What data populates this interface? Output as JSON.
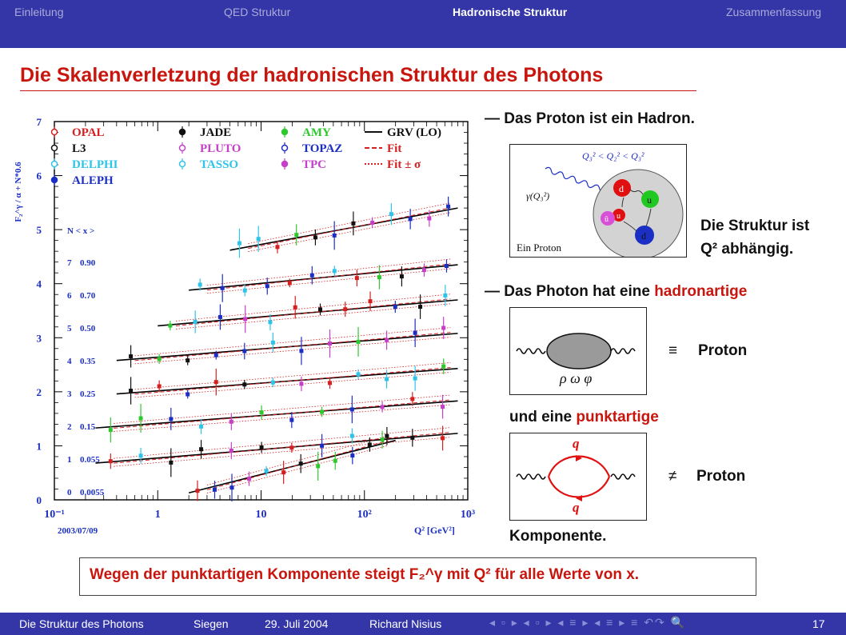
{
  "header": {
    "sections": [
      "Einleitung",
      "QED Struktur",
      "Hadronische Struktur",
      "Zusammenfassung"
    ],
    "active_index": 2
  },
  "slide": {
    "title": "Die Skalenverletzung der hadronischen Struktur des Photons"
  },
  "plot": {
    "ylabel": "F₂^γ / α + N*0.6",
    "xlabel": "Q² [GeV²]",
    "date": "2003/07/09",
    "ytick_labels": [
      "0",
      "1",
      "2",
      "3",
      "4",
      "5",
      "6",
      "7"
    ],
    "xtick_labels": [
      "10⁻¹",
      "1",
      "10",
      "10²",
      "10³"
    ],
    "legend": [
      {
        "label": "OPAL",
        "color": "#d42020",
        "marker": "circle-open"
      },
      {
        "label": "L3",
        "color": "#111111",
        "marker": "square-open"
      },
      {
        "label": "DELPHI",
        "color": "#2ec4e8",
        "marker": "triangle-open"
      },
      {
        "label": "ALEPH",
        "color": "#1b2fc4",
        "marker": "triangle-filled"
      },
      {
        "label": "JADE",
        "color": "#111111",
        "marker": "square-filled"
      },
      {
        "label": "PLUTO",
        "color": "#c53fc8",
        "marker": "diamond-open"
      },
      {
        "label": "TASSO",
        "color": "#2ec4e8",
        "marker": "triangle-open"
      },
      {
        "label": "AMY",
        "color": "#2ec82e",
        "marker": "triangle-down"
      },
      {
        "label": "TOPAZ",
        "color": "#1b2fc4",
        "marker": "square-open"
      },
      {
        "label": "TPC",
        "color": "#c53fc8",
        "marker": "star"
      },
      {
        "label": "GRV (LO)",
        "color": "#111111",
        "marker": "line-solid"
      },
      {
        "label": "Fit",
        "color": "#d42020",
        "marker": "line-dashed"
      },
      {
        "label": "Fit ± σ",
        "color": "#d42020",
        "marker": "line-dotted"
      }
    ],
    "bins_header": "N  < x >",
    "bins": [
      {
        "N": "7",
        "x": "0.90"
      },
      {
        "N": "6",
        "x": "0.70"
      },
      {
        "N": "5",
        "x": "0.50"
      },
      {
        "N": "4",
        "x": "0.35"
      },
      {
        "N": "3",
        "x": "0.25"
      },
      {
        "N": "2",
        "x": "0.15"
      },
      {
        "N": "1",
        "x": "0.055"
      },
      {
        "N": "0",
        "x": "0.0055"
      }
    ]
  },
  "chart_data": {
    "type": "scatter",
    "xscale": "log",
    "xlim": [
      0.1,
      1000
    ],
    "ylim": [
      0,
      7
    ],
    "grv_lines": [
      {
        "N": 0,
        "x_range": [
          2,
          200
        ],
        "y_range": [
          0.13,
          1.1
        ]
      },
      {
        "N": 1,
        "x_range": [
          0.25,
          800
        ],
        "y_range": [
          0.68,
          1.23
        ]
      },
      {
        "N": 2,
        "x_range": [
          0.25,
          800
        ],
        "y_range": [
          1.33,
          1.83
        ]
      },
      {
        "N": 3,
        "x_range": [
          0.4,
          800
        ],
        "y_range": [
          1.96,
          2.43
        ]
      },
      {
        "N": 4,
        "x_range": [
          0.4,
          800
        ],
        "y_range": [
          2.58,
          3.08
        ]
      },
      {
        "N": 5,
        "x_range": [
          1,
          800
        ],
        "y_range": [
          3.22,
          3.7
        ]
      },
      {
        "N": 6,
        "x_range": [
          2,
          800
        ],
        "y_range": [
          3.88,
          4.35
        ]
      },
      {
        "N": 7,
        "x_range": [
          5,
          800
        ],
        "y_range": [
          4.62,
          5.4
        ]
      }
    ]
  },
  "right": {
    "bullet1": "— Das Proton ist ein Hadron.",
    "proton_diagram": {
      "inequality": "Q₃² < Q₂² < Q₃²",
      "gamma": "γ(Q₃²)",
      "caption": "Ein Proton",
      "quarks": [
        "d",
        "u",
        "u",
        "ū",
        "d"
      ]
    },
    "side1_line1": "Die Struktur ist",
    "side1_line2": "Q² abhängig.",
    "bullet2_pre": "— Das Photon hat eine ",
    "bullet2_red": "hadronartige",
    "vm_caption": "ρ ω φ",
    "equiv": "≡",
    "proton_label1": "Proton",
    "und_pre": "und eine ",
    "und_red": "punktartige",
    "quark_q": "q",
    "notequiv": "≠",
    "proton_label2": "Proton",
    "komponente": "Komponente."
  },
  "conclusion": "Wegen der punktartigen Komponente steigt F₂^γ mit Q² für alle Werte von x.",
  "footer": {
    "talk": "Die Struktur des Photons",
    "place": "Siegen",
    "date": "29. Juli 2004",
    "author": "Richard Nisius",
    "page": "17",
    "nav_symbols": "◂ ▫ ▸ ◂ ▫ ▸ ◂ ≡ ▸ ◂ ≡ ▸ ≡ ↶↷ 🔍"
  }
}
